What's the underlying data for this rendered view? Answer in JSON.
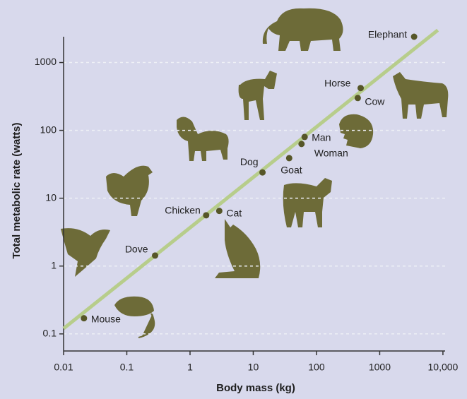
{
  "chart_data": {
    "type": "scatter",
    "x_label": "Body mass (kg)",
    "y_label": "Total metabolic rate (watts)",
    "log_x": true,
    "log_y": true,
    "grid": true,
    "color": "#565628",
    "line_color": "#b7cd8b",
    "labels": [
      "Mouse",
      "Dove",
      "Chicken",
      "Cat",
      "Dog",
      "Goat",
      "Woman",
      "Man",
      "Cow",
      "Horse",
      "Elephant"
    ],
    "x": [
      0.021,
      0.28,
      1.8,
      2.9,
      14,
      37,
      58,
      65,
      450,
      500,
      3500
    ],
    "values": [
      0.17,
      1.43,
      5.6,
      6.5,
      24,
      39,
      63,
      80,
      300,
      420,
      2400
    ],
    "trend_line": {
      "x": [
        0.01,
        8300
      ],
      "y": [
        0.12,
        3000
      ]
    },
    "xlim": [
      0.01,
      14000
    ],
    "ylim": [
      0.056,
      3200
    ],
    "xticks": [
      0.01,
      0.1,
      1,
      10,
      100,
      1000,
      {
        "value": 10000,
        "label": "10,000"
      }
    ],
    "yticks": [
      0.1,
      1,
      10,
      100,
      1000
    ]
  }
}
